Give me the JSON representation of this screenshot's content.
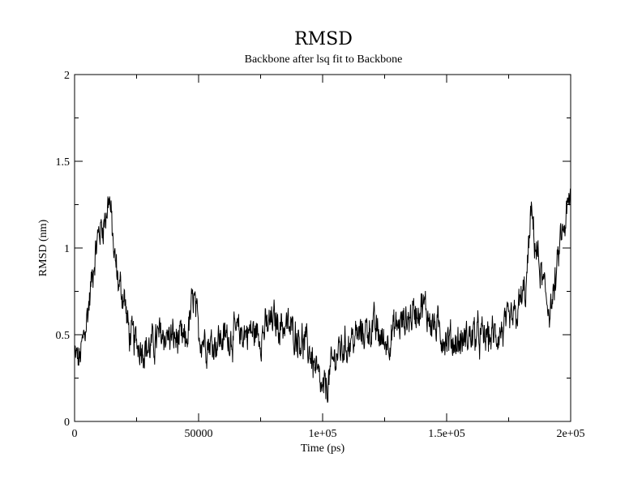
{
  "chart_data": {
    "type": "line",
    "title": "RMSD",
    "subtitle": "Backbone after lsq fit to Backbone",
    "xlabel": "Time (ps)",
    "ylabel": "RMSD (nm)",
    "xlim": [
      0,
      200000
    ],
    "ylim": [
      0,
      2
    ],
    "x_ticks": [
      0,
      50000,
      100000,
      150000,
      200000
    ],
    "x_tick_labels": [
      "0",
      "50000",
      "1e+05",
      "1.5e+05",
      "2e+05"
    ],
    "y_ticks": [
      0,
      0.5,
      1,
      1.5,
      2
    ],
    "y_tick_labels": [
      "0",
      "0.5",
      "1",
      "1.5",
      "2"
    ],
    "grid": false,
    "legend": "none",
    "line_color": "#000000",
    "series": [
      {
        "x": [
          0,
          2000,
          4000,
          6000,
          8000,
          10000,
          12000,
          14000,
          16000,
          18000,
          20000,
          22000,
          25000,
          30000,
          35000,
          40000,
          45000,
          48000,
          50000,
          55000,
          60000,
          65000,
          70000,
          75000,
          80000,
          85000,
          90000,
          95000,
          98000,
          100000,
          102000,
          105000,
          110000,
          115000,
          120000,
          125000,
          130000,
          135000,
          140000,
          145000,
          150000,
          155000,
          160000,
          165000,
          170000,
          175000,
          178000,
          180000,
          182000,
          184000,
          186000,
          188000,
          190000,
          192000,
          194000,
          196000,
          198000,
          200000
        ],
        "y": [
          0.38,
          0.35,
          0.5,
          0.7,
          0.95,
          1.1,
          1.15,
          1.3,
          0.95,
          0.78,
          0.72,
          0.5,
          0.45,
          0.42,
          0.5,
          0.48,
          0.45,
          0.72,
          0.5,
          0.45,
          0.48,
          0.5,
          0.52,
          0.5,
          0.58,
          0.55,
          0.5,
          0.4,
          0.25,
          0.15,
          0.22,
          0.38,
          0.45,
          0.5,
          0.55,
          0.45,
          0.55,
          0.6,
          0.68,
          0.55,
          0.48,
          0.45,
          0.5,
          0.48,
          0.5,
          0.55,
          0.6,
          0.7,
          0.75,
          1.2,
          1.0,
          0.85,
          0.7,
          0.65,
          0.8,
          1.05,
          1.15,
          1.3
        ]
      }
    ]
  }
}
